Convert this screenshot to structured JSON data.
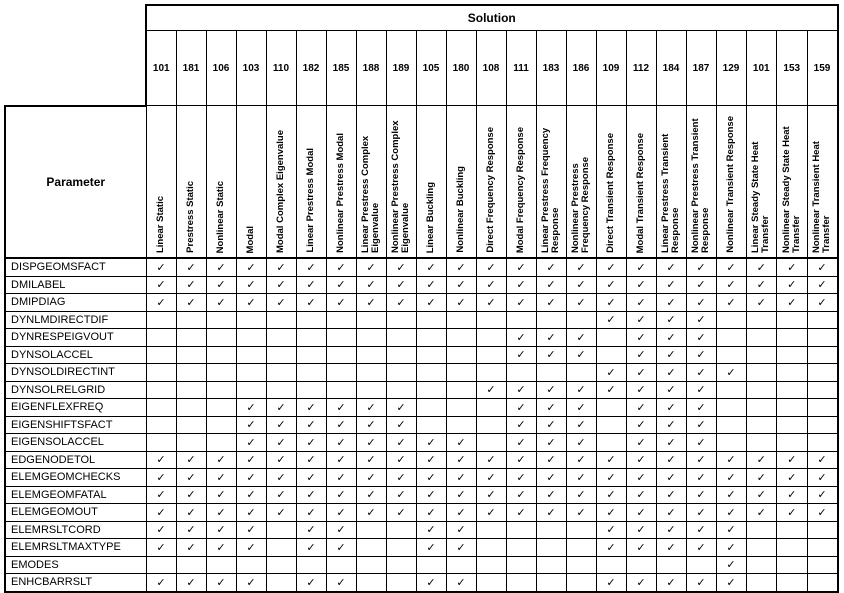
{
  "header": {
    "group_label": "Solution",
    "parameter_label": "Parameter"
  },
  "columns": [
    {
      "number": "101",
      "name": "Linear Static"
    },
    {
      "number": "181",
      "name": "Prestress Static"
    },
    {
      "number": "106",
      "name": "Nonlinear Static"
    },
    {
      "number": "103",
      "name": "Modal"
    },
    {
      "number": "110",
      "name": "Modal Complex Eigenvalue"
    },
    {
      "number": "182",
      "name": "Linear Prestress Modal"
    },
    {
      "number": "185",
      "name": "Nonlinear Prestress Modal"
    },
    {
      "number": "188",
      "name": "Linear Prestress Complex Eigenvalue"
    },
    {
      "number": "189",
      "name": "Nonlinear Prestress Complex Eigenvalue"
    },
    {
      "number": "105",
      "name": "Linear Buckling"
    },
    {
      "number": "180",
      "name": "Nonlinear Buckling"
    },
    {
      "number": "108",
      "name": "Direct Frequency Response"
    },
    {
      "number": "111",
      "name": "Modal Frequency Response"
    },
    {
      "number": "183",
      "name": "Linear Prestress Frequency Response"
    },
    {
      "number": "186",
      "name": "Nonlinear Prestress Frequency Response"
    },
    {
      "number": "109",
      "name": "Direct Transient Response"
    },
    {
      "number": "112",
      "name": "Modal Transient Response"
    },
    {
      "number": "184",
      "name": "Linear Prestress Transient Response"
    },
    {
      "number": "187",
      "name": "Nonlinear Prestress Transient Response"
    },
    {
      "number": "129",
      "name": "Nonlinear Transient Response"
    },
    {
      "number": "101",
      "name": "Linear Steady State Heat Transfer"
    },
    {
      "number": "153",
      "name": "Nonlinear Steady State Heat Transfer"
    },
    {
      "number": "159",
      "name": "Nonlinear Transient Heat Transfer"
    }
  ],
  "check_glyph": "✓",
  "rows": [
    {
      "parameter": "DISPGEOMSFACT",
      "checked_columns": [
        0,
        1,
        2,
        3,
        4,
        5,
        6,
        7,
        8,
        9,
        10,
        11,
        12,
        13,
        14,
        15,
        16,
        17,
        18,
        19,
        20,
        21,
        22
      ]
    },
    {
      "parameter": "DMILABEL",
      "checked_columns": [
        0,
        1,
        2,
        3,
        4,
        5,
        6,
        7,
        8,
        9,
        10,
        11,
        12,
        13,
        14,
        15,
        16,
        17,
        18,
        19,
        20,
        21,
        22
      ]
    },
    {
      "parameter": "DMIPDIAG",
      "checked_columns": [
        0,
        1,
        2,
        3,
        4,
        5,
        6,
        7,
        8,
        9,
        10,
        11,
        12,
        13,
        14,
        15,
        16,
        17,
        18,
        19,
        20,
        21,
        22
      ]
    },
    {
      "parameter": "DYNLMDIRECTDIF",
      "checked_columns": [
        15,
        16,
        17,
        18
      ]
    },
    {
      "parameter": "DYNRESPEIGVOUT",
      "checked_columns": [
        12,
        13,
        14,
        16,
        17,
        18
      ]
    },
    {
      "parameter": "DYNSOLACCEL",
      "checked_columns": [
        12,
        13,
        14,
        16,
        17,
        18
      ]
    },
    {
      "parameter": "DYNSOLDIRECTINT",
      "checked_columns": [
        15,
        16,
        17,
        18,
        19
      ]
    },
    {
      "parameter": "DYNSOLRELGRID",
      "checked_columns": [
        11,
        12,
        13,
        14,
        15,
        16,
        17,
        18
      ]
    },
    {
      "parameter": "EIGENFLEXFREQ",
      "checked_columns": [
        3,
        4,
        5,
        6,
        7,
        8,
        12,
        13,
        14,
        16,
        17,
        18
      ]
    },
    {
      "parameter": "EIGENSHIFTSFACT",
      "checked_columns": [
        3,
        4,
        5,
        6,
        7,
        8,
        12,
        13,
        14,
        16,
        17,
        18
      ]
    },
    {
      "parameter": "EIGENSOLACCEL",
      "checked_columns": [
        3,
        4,
        5,
        6,
        7,
        8,
        9,
        10,
        12,
        13,
        14,
        16,
        17,
        18
      ]
    },
    {
      "parameter": "EDGENODETOL",
      "checked_columns": [
        0,
        1,
        2,
        3,
        4,
        5,
        6,
        7,
        8,
        9,
        10,
        11,
        12,
        13,
        14,
        15,
        16,
        17,
        18,
        19,
        20,
        21,
        22
      ]
    },
    {
      "parameter": "ELEMGEOMCHECKS",
      "checked_columns": [
        0,
        1,
        2,
        3,
        4,
        5,
        6,
        7,
        8,
        9,
        10,
        11,
        12,
        13,
        14,
        15,
        16,
        17,
        18,
        19,
        20,
        21,
        22
      ]
    },
    {
      "parameter": "ELEMGEOMFATAL",
      "checked_columns": [
        0,
        1,
        2,
        3,
        4,
        5,
        6,
        7,
        8,
        9,
        10,
        11,
        12,
        13,
        14,
        15,
        16,
        17,
        18,
        19,
        20,
        21,
        22
      ]
    },
    {
      "parameter": "ELEMGEOMOUT",
      "checked_columns": [
        0,
        1,
        2,
        3,
        4,
        5,
        6,
        7,
        8,
        9,
        10,
        11,
        12,
        13,
        14,
        15,
        16,
        17,
        18,
        19,
        20,
        21,
        22
      ]
    },
    {
      "parameter": "ELEMRSLTCORD",
      "checked_columns": [
        0,
        1,
        2,
        3,
        5,
        6,
        9,
        10,
        15,
        16,
        17,
        18,
        19
      ]
    },
    {
      "parameter": "ELEMRSLTMAXTYPE",
      "checked_columns": [
        0,
        1,
        2,
        3,
        5,
        6,
        9,
        10,
        15,
        16,
        17,
        18,
        19
      ]
    },
    {
      "parameter": "EMODES",
      "checked_columns": [
        19
      ]
    },
    {
      "parameter": "ENHCBARRSLT",
      "checked_columns": [
        0,
        1,
        2,
        3,
        5,
        6,
        9,
        10,
        15,
        16,
        17,
        18,
        19
      ]
    }
  ]
}
